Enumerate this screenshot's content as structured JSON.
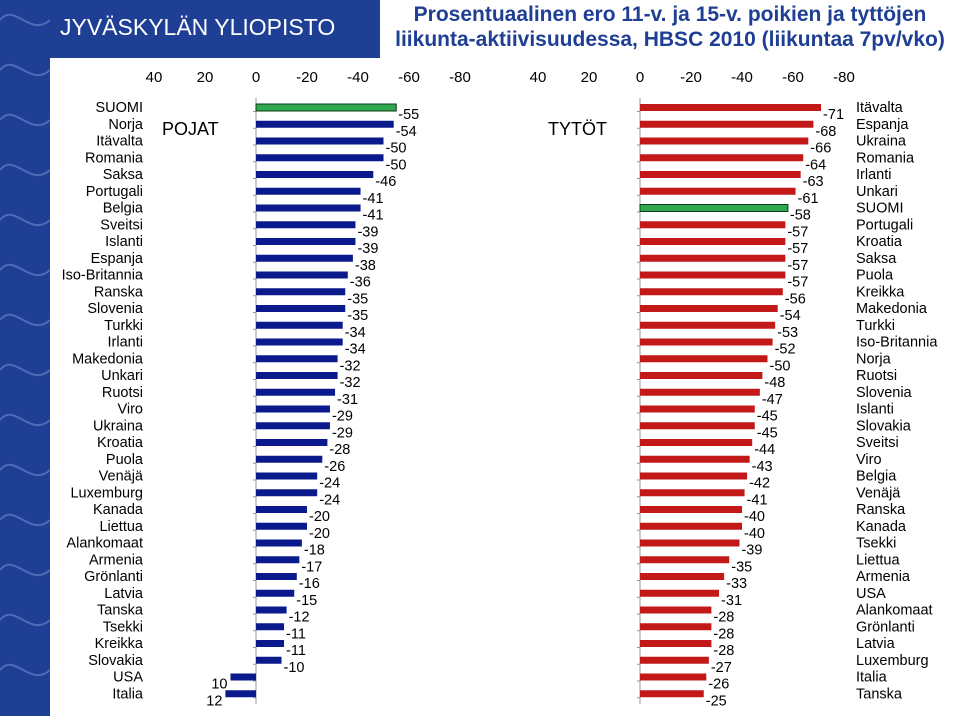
{
  "header": {
    "university": "JYVÄSKYLÄN YLIOPISTO",
    "title_line1": "Prosentuaalinen ero 11-v. ja 15-v. poikien ja tyttöjen",
    "title_line2": "liikunta-aktiivisuudessa, HBSC 2010 (liikuntaa 7pv/vko)"
  },
  "colors": {
    "brand_blue": "#1f3f94",
    "boys_bar": "#0a1a8c",
    "girls_bar": "#c21818",
    "finland_bar": "#2fa84f"
  },
  "chart_data": [
    {
      "type": "bar",
      "orientation": "horizontal",
      "group_label": "POJAT",
      "highlight": "SUOMI",
      "xlim": [
        40,
        -80
      ],
      "xticks": [
        "40",
        "20",
        "0",
        "-20",
        "-40",
        "-60",
        "-80"
      ],
      "tick_values": [
        40,
        20,
        0,
        -20,
        -40,
        -60,
        -80
      ],
      "categories": [
        "SUOMI",
        "Norja",
        "Itävalta",
        "Romania",
        "Saksa",
        "Portugali",
        "Belgia",
        "Sveitsi",
        "Islanti",
        "Espanja",
        "Iso-Britannia",
        "Ranska",
        "Slovenia",
        "Turkki",
        "Irlanti",
        "Makedonia",
        "Unkari",
        "Ruotsi",
        "Viro",
        "Ukraina",
        "Kroatia",
        "Puola",
        "Venäjä",
        "Luxemburg",
        "Kanada",
        "Liettua",
        "Alankomaat",
        "Armenia",
        "Grönlanti",
        "Latvia",
        "Tanska",
        "Tsekki",
        "Kreikka",
        "Slovakia",
        "USA",
        "Italia"
      ],
      "values": [
        -55,
        -54,
        -50,
        -50,
        -46,
        -41,
        -41,
        -39,
        -39,
        -38,
        -36,
        -35,
        -35,
        -34,
        -34,
        -32,
        -32,
        -31,
        -29,
        -29,
        -28,
        -26,
        -24,
        -24,
        -20,
        -20,
        -18,
        -17,
        -16,
        -15,
        -12,
        -11,
        -11,
        -10,
        10,
        12
      ]
    },
    {
      "type": "bar",
      "orientation": "horizontal",
      "group_label": "TYTÖT",
      "highlight": "SUOMI",
      "xlim": [
        40,
        -80
      ],
      "xticks": [
        "40",
        "20",
        "0",
        "-20",
        "-40",
        "-60",
        "-80"
      ],
      "tick_values": [
        40,
        20,
        0,
        -20,
        -40,
        -60,
        -80
      ],
      "categories": [
        "Itävalta",
        "Espanja",
        "Ukraina",
        "Romania",
        "Irlanti",
        "Unkari",
        "SUOMI",
        "Portugali",
        "Kroatia",
        "Saksa",
        "Puola",
        "Kreikka",
        "Makedonia",
        "Turkki",
        "Iso-Britannia",
        "Norja",
        "Ruotsi",
        "Slovenia",
        "Islanti",
        "Slovakia",
        "Sveitsi",
        "Viro",
        "Belgia",
        "Venäjä",
        "Ranska",
        "Kanada",
        "Tsekki",
        "Liettua",
        "Armenia",
        "USA",
        "Alankomaat",
        "Grönlanti",
        "Latvia",
        "Luxemburg",
        "Italia",
        "Tanska"
      ],
      "values": [
        -71,
        -68,
        -66,
        -64,
        -63,
        -61,
        -58,
        -57,
        -57,
        -57,
        -57,
        -56,
        -54,
        -53,
        -52,
        -50,
        -48,
        -47,
        -45,
        -45,
        -44,
        -43,
        -42,
        -41,
        -40,
        -40,
        -39,
        -35,
        -33,
        -31,
        -28,
        -28,
        -28,
        -27,
        -26,
        -25
      ]
    }
  ]
}
